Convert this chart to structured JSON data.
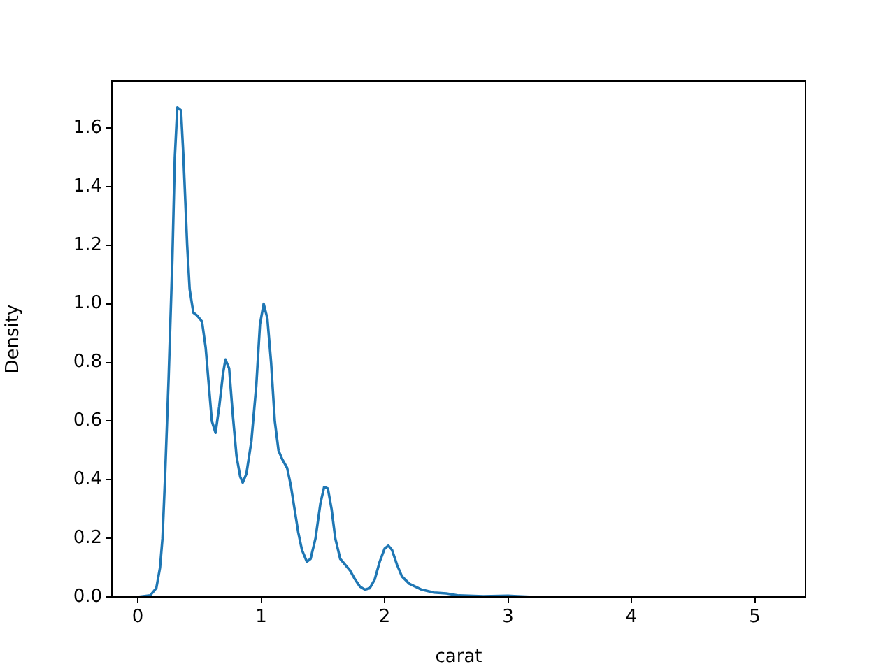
{
  "chart_data": {
    "type": "line",
    "xlabel": "carat",
    "ylabel": "Density",
    "x": [
      0.0,
      0.1,
      0.15,
      0.18,
      0.2,
      0.22,
      0.25,
      0.28,
      0.3,
      0.32,
      0.35,
      0.37,
      0.4,
      0.42,
      0.45,
      0.48,
      0.52,
      0.55,
      0.58,
      0.6,
      0.63,
      0.66,
      0.69,
      0.71,
      0.74,
      0.77,
      0.8,
      0.83,
      0.85,
      0.88,
      0.92,
      0.96,
      0.99,
      1.02,
      1.05,
      1.08,
      1.11,
      1.14,
      1.17,
      1.21,
      1.24,
      1.27,
      1.3,
      1.33,
      1.37,
      1.4,
      1.44,
      1.48,
      1.51,
      1.54,
      1.57,
      1.6,
      1.64,
      1.68,
      1.72,
      1.76,
      1.8,
      1.84,
      1.88,
      1.92,
      1.96,
      2.0,
      2.03,
      2.06,
      2.1,
      2.14,
      2.2,
      2.3,
      2.4,
      2.5,
      2.6,
      2.8,
      3.0,
      3.05,
      3.2,
      4.0,
      5.0,
      5.18
    ],
    "series": [
      {
        "color": "#1f77b4",
        "values": [
          0,
          0.005,
          0.03,
          0.1,
          0.2,
          0.4,
          0.75,
          1.15,
          1.5,
          1.67,
          1.66,
          1.5,
          1.2,
          1.05,
          0.97,
          0.96,
          0.94,
          0.85,
          0.7,
          0.6,
          0.56,
          0.65,
          0.76,
          0.81,
          0.78,
          0.62,
          0.48,
          0.41,
          0.39,
          0.42,
          0.53,
          0.72,
          0.93,
          1.0,
          0.95,
          0.8,
          0.6,
          0.5,
          0.47,
          0.44,
          0.38,
          0.3,
          0.22,
          0.16,
          0.12,
          0.13,
          0.2,
          0.32,
          0.375,
          0.37,
          0.3,
          0.2,
          0.13,
          0.11,
          0.09,
          0.06,
          0.035,
          0.025,
          0.03,
          0.06,
          0.12,
          0.165,
          0.175,
          0.16,
          0.11,
          0.07,
          0.045,
          0.025,
          0.015,
          0.012,
          0.005,
          0.002,
          0.004,
          0.003,
          0,
          0,
          0,
          0
        ]
      }
    ],
    "xlim": [
      -0.21,
      5.41
    ],
    "ylim": [
      0,
      1.76
    ],
    "xticks": [
      0,
      1,
      2,
      3,
      4,
      5
    ],
    "yticks": [
      {
        "value": 0,
        "label": "0.0"
      },
      {
        "value": 0.2,
        "label": "0.2"
      },
      {
        "value": 0.4,
        "label": "0.4"
      },
      {
        "value": 0.6,
        "label": "0.6"
      },
      {
        "value": 0.8,
        "label": "0.8"
      },
      {
        "value": 1.0,
        "label": "1.0"
      },
      {
        "value": 1.2,
        "label": "1.2"
      },
      {
        "value": 1.4,
        "label": "1.4"
      },
      {
        "value": 1.6,
        "label": "1.6"
      }
    ],
    "grid": false,
    "legend": false,
    "marker": "none",
    "line_style": "solid"
  }
}
